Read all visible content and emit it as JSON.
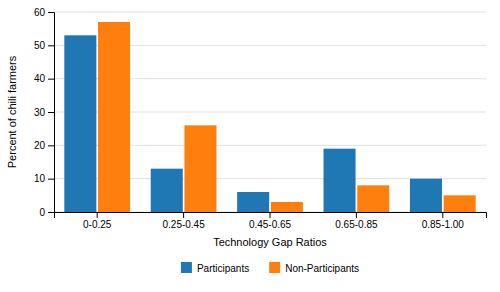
{
  "chart_data": {
    "type": "bar",
    "categories": [
      "0-0.25",
      "0.25-0.45",
      "0.45-0.65",
      "0.65-0.85",
      "0.85-1.00"
    ],
    "series": [
      {
        "name": "Participants",
        "values": [
          53,
          13,
          6,
          19,
          10
        ]
      },
      {
        "name": "Non-Participants",
        "values": [
          57,
          26,
          3,
          8,
          5
        ]
      }
    ],
    "xlabel": "Technology Gap Ratios",
    "ylabel": "Percent of chili farmers",
    "ylim": [
      0,
      60
    ],
    "yticks": [
      0,
      10,
      20,
      30,
      40,
      50,
      60
    ],
    "grid": true,
    "legend": "bottom"
  }
}
